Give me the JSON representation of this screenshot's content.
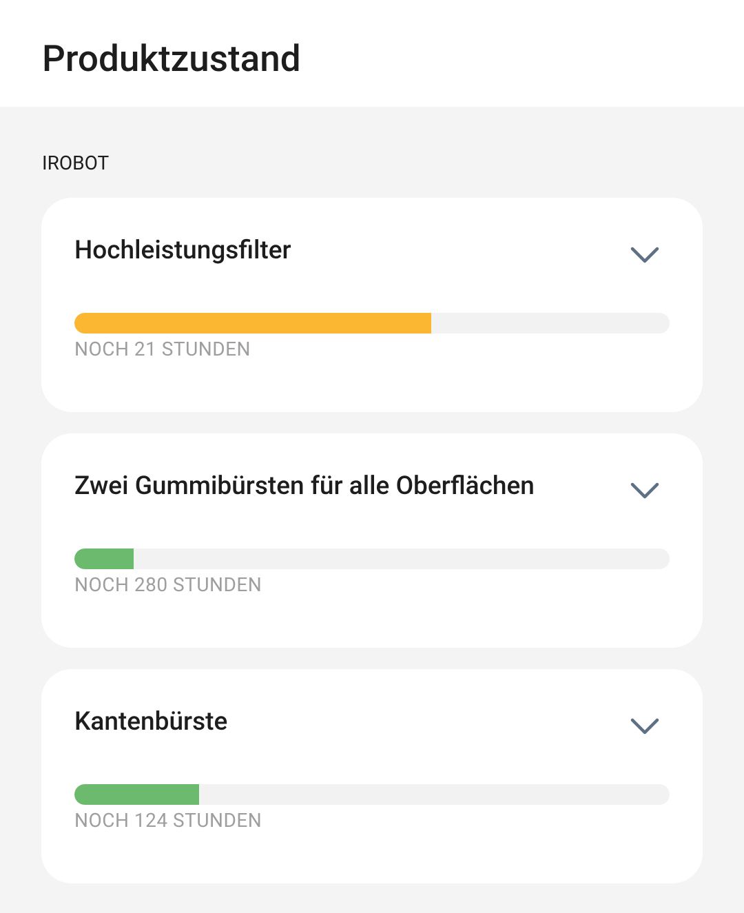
{
  "header": {
    "title": "Produktzustand"
  },
  "section": {
    "label": "IROBOT"
  },
  "items": [
    {
      "name": "Hochleistungsfilter",
      "status": "NOCH 21 STUNDEN",
      "progress": 60,
      "color": "#fbb731"
    },
    {
      "name": "Zwei Gummibürsten für alle Oberflächen",
      "status": "NOCH 280 STUNDEN",
      "progress": 10,
      "color": "#6bba6e"
    },
    {
      "name": "Kantenbürste",
      "status": "NOCH 124 STUNDEN",
      "progress": 21,
      "color": "#6bba6e"
    }
  ]
}
